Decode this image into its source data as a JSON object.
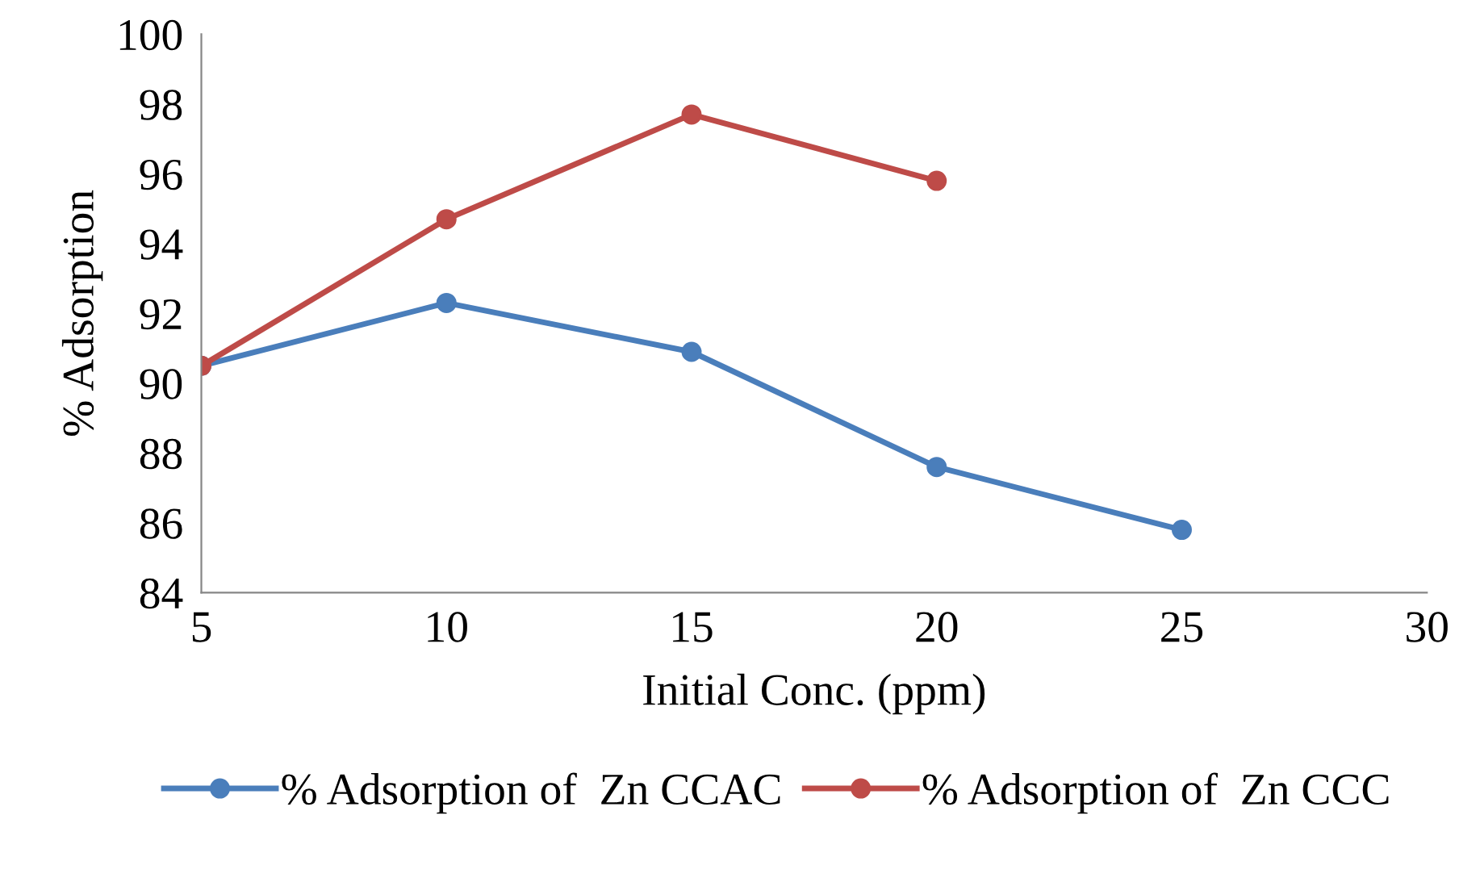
{
  "chart_data": {
    "type": "line",
    "xlabel": "Initial Conc. (ppm)",
    "ylabel": "% Adsorption",
    "x": [
      5,
      10,
      15,
      20,
      25
    ],
    "series": [
      {
        "name": "% Adsorption of  Zn CCAC",
        "color": "#4a7ebb",
        "values": [
          90.5,
          92.3,
          90.9,
          87.6,
          85.8
        ]
      },
      {
        "name": "% Adsorption of  Zn CCC",
        "color": "#be4b48",
        "values": [
          90.5,
          94.7,
          97.7,
          95.8,
          null
        ]
      }
    ],
    "xlim": [
      5,
      30
    ],
    "xticks": [
      5,
      10,
      15,
      20,
      25,
      30
    ],
    "ylim": [
      84,
      100
    ],
    "yticks": [
      84,
      86,
      88,
      90,
      92,
      94,
      96,
      98,
      100
    ],
    "grid": false,
    "legend": "bottom",
    "marker": "circle",
    "line_style": "solid"
  }
}
